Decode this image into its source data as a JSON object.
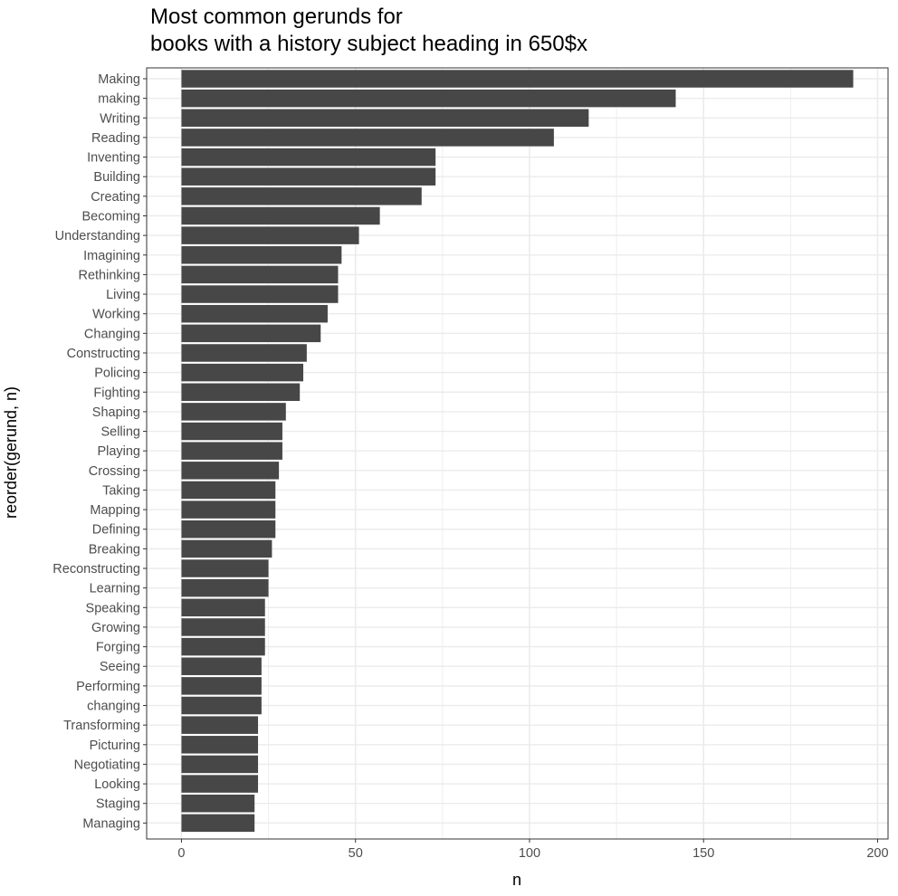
{
  "chart_data": {
    "type": "bar",
    "orientation": "horizontal",
    "title_line1": "Most common gerunds for",
    "title_line2": "books with a history subject heading in 650$x",
    "xlabel": "n",
    "ylabel": "reorder(gerund, n)",
    "xlim": [
      -10,
      203
    ],
    "xticks": [
      0,
      50,
      100,
      150,
      200
    ],
    "grid": true,
    "bar_color": "#474747",
    "grid_color": "#ebebeb",
    "panel_border_color": "#333333",
    "categories": [
      "Making",
      "making",
      "Writing",
      "Reading",
      "Inventing",
      "Building",
      "Creating",
      "Becoming",
      "Understanding",
      "Imagining",
      "Rethinking",
      "Living",
      "Working",
      "Changing",
      "Constructing",
      "Policing",
      "Fighting",
      "Shaping",
      "Selling",
      "Playing",
      "Crossing",
      "Taking",
      "Mapping",
      "Defining",
      "Breaking",
      "Reconstructing",
      "Learning",
      "Speaking",
      "Growing",
      "Forging",
      "Seeing",
      "Performing",
      "changing",
      "Transforming",
      "Picturing",
      "Negotiating",
      "Looking",
      "Staging",
      "Managing"
    ],
    "values": [
      193,
      142,
      117,
      107,
      73,
      73,
      69,
      57,
      51,
      46,
      45,
      45,
      42,
      40,
      36,
      35,
      34,
      30,
      29,
      29,
      28,
      27,
      27,
      27,
      26,
      25,
      25,
      24,
      24,
      24,
      23,
      23,
      23,
      22,
      22,
      22,
      22,
      21,
      21
    ]
  }
}
